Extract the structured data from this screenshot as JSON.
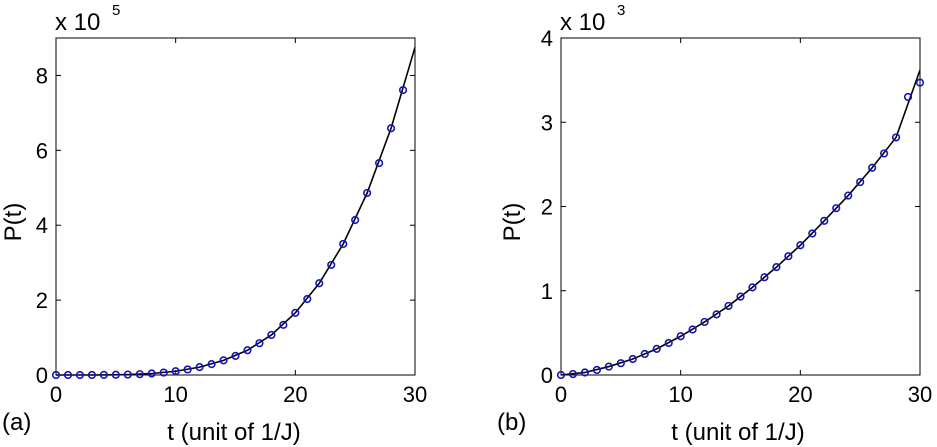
{
  "chart_data": [
    {
      "type": "line",
      "panel_label": "(a)",
      "xlabel": "t (unit of 1/J)",
      "ylabel": "P(t)",
      "y_multiplier": {
        "base": "x 10",
        "exponent": "5"
      },
      "xlim": [
        0,
        30
      ],
      "ylim": [
        0,
        9
      ],
      "xticks": [
        0,
        10,
        20,
        30
      ],
      "yticks": [
        0,
        2,
        4,
        6,
        8
      ],
      "grid": false,
      "series": [
        {
          "style": "line",
          "color": "#000000",
          "x": [
            0,
            2,
            4,
            6,
            8,
            10,
            12,
            14,
            16,
            18,
            20,
            22,
            24,
            26,
            28,
            30
          ],
          "y": [
            0,
            0,
            0.003,
            0.012,
            0.04,
            0.1,
            0.21,
            0.39,
            0.66,
            1.07,
            1.66,
            2.45,
            3.5,
            4.86,
            6.59,
            8.75
          ]
        },
        {
          "style": "markers",
          "marker": "circle",
          "color": "#1515b5",
          "x": [
            0,
            1,
            2,
            3,
            4,
            5,
            6,
            7,
            8,
            9,
            10,
            11,
            12,
            13,
            14,
            15,
            16,
            17,
            18,
            19,
            20,
            21,
            22,
            23,
            24,
            25,
            26,
            27,
            28,
            29
          ],
          "y": [
            0,
            0,
            0,
            0.001,
            0.003,
            0.006,
            0.012,
            0.022,
            0.04,
            0.065,
            0.1,
            0.148,
            0.21,
            0.29,
            0.39,
            0.51,
            0.66,
            0.85,
            1.07,
            1.34,
            1.66,
            2.03,
            2.45,
            2.94,
            3.5,
            4.14,
            4.86,
            5.66,
            6.59,
            7.61
          ]
        }
      ]
    },
    {
      "type": "line",
      "panel_label": "(b)",
      "xlabel": "t (unit of 1/J)",
      "ylabel": "P(t)",
      "y_multiplier": {
        "base": "x 10",
        "exponent": "3"
      },
      "xlim": [
        0,
        30
      ],
      "ylim": [
        0,
        4
      ],
      "xticks": [
        0,
        10,
        20,
        30
      ],
      "yticks": [
        0,
        1,
        2,
        3,
        4
      ],
      "grid": false,
      "series": [
        {
          "style": "line",
          "color": "#000000",
          "x": [
            0,
            2,
            4,
            6,
            8,
            10,
            12,
            14,
            16,
            18,
            20,
            22,
            24,
            26,
            28,
            30
          ],
          "y": [
            0,
            0.03,
            0.1,
            0.19,
            0.31,
            0.46,
            0.63,
            0.82,
            1.04,
            1.28,
            1.54,
            1.83,
            2.13,
            2.46,
            2.82,
            3.62
          ]
        },
        {
          "style": "markers",
          "marker": "circle",
          "color": "#1515b5",
          "x": [
            0,
            1,
            2,
            3,
            4,
            5,
            6,
            7,
            8,
            9,
            10,
            11,
            12,
            13,
            14,
            15,
            16,
            17,
            18,
            19,
            20,
            21,
            22,
            23,
            24,
            25,
            26,
            27,
            28,
            29,
            30
          ],
          "y": [
            0,
            0.01,
            0.03,
            0.06,
            0.1,
            0.14,
            0.19,
            0.25,
            0.31,
            0.38,
            0.46,
            0.54,
            0.63,
            0.72,
            0.82,
            0.93,
            1.04,
            1.16,
            1.28,
            1.41,
            1.54,
            1.68,
            1.83,
            1.98,
            2.13,
            2.29,
            2.46,
            2.63,
            2.82,
            3.3,
            3.47
          ]
        }
      ]
    }
  ]
}
